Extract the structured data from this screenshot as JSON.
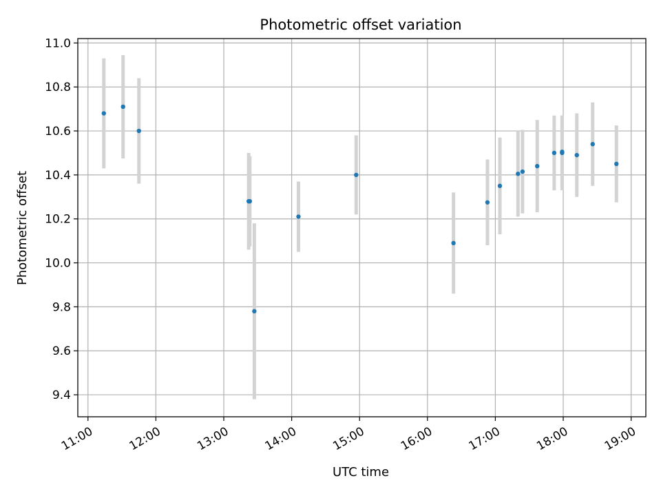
{
  "chart_data": {
    "type": "scatter",
    "title": "Photometric offset variation",
    "xlabel": "UTC time",
    "ylabel": "Photometric offset",
    "x_axis_type": "time",
    "xlim": [
      "10:51",
      "19:13"
    ],
    "ylim": [
      9.3,
      11.02
    ],
    "x_ticks": [
      "11:00",
      "12:00",
      "13:00",
      "14:00",
      "15:00",
      "16:00",
      "17:00",
      "18:00",
      "19:00"
    ],
    "y_ticks": [
      9.4,
      9.6,
      9.8,
      10.0,
      10.2,
      10.4,
      10.6,
      10.8,
      11.0
    ],
    "grid": true,
    "legend": "none",
    "colors": {
      "point": "#1f77b4",
      "errorbar": "#d3d3d3",
      "grid": "#b0b0b0"
    },
    "points": [
      {
        "x": "11:14",
        "y": 10.68,
        "err": 0.25
      },
      {
        "x": "11:31",
        "y": 10.71,
        "err": 0.235
      },
      {
        "x": "11:45",
        "y": 10.6,
        "err": 0.24
      },
      {
        "x": "13:22",
        "y": 10.28,
        "err": 0.22
      },
      {
        "x": "13:23",
        "y": 10.28,
        "err": 0.205
      },
      {
        "x": "13:27",
        "y": 9.78,
        "err": 0.4
      },
      {
        "x": "14:06",
        "y": 10.21,
        "err": 0.16
      },
      {
        "x": "14:57",
        "y": 10.4,
        "err": 0.18
      },
      {
        "x": "16:23",
        "y": 10.09,
        "err": 0.23
      },
      {
        "x": "16:53",
        "y": 10.275,
        "err": 0.195
      },
      {
        "x": "17:04",
        "y": 10.35,
        "err": 0.22
      },
      {
        "x": "17:20",
        "y": 10.405,
        "err": 0.195
      },
      {
        "x": "17:24",
        "y": 10.415,
        "err": 0.19
      },
      {
        "x": "17:37",
        "y": 10.44,
        "err": 0.21
      },
      {
        "x": "17:52",
        "y": 10.5,
        "err": 0.17
      },
      {
        "x": "17:59",
        "y": 10.505,
        "err": 0.165
      },
      {
        "x": "17:59",
        "y": 10.5,
        "err": 0.17
      },
      {
        "x": "18:12",
        "y": 10.49,
        "err": 0.19
      },
      {
        "x": "18:26",
        "y": 10.54,
        "err": 0.19
      },
      {
        "x": "18:47",
        "y": 10.45,
        "err": 0.175
      }
    ]
  }
}
